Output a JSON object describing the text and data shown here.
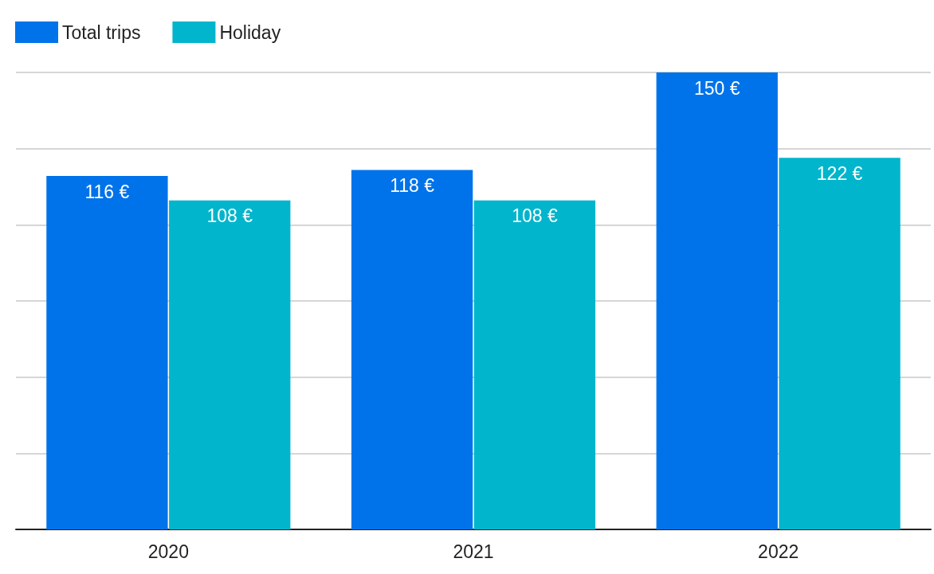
{
  "chart_data": {
    "type": "bar",
    "categories": [
      "2020",
      "2021",
      "2022"
    ],
    "series": [
      {
        "name": "Total trips",
        "color": "#0073ea",
        "values": [
          116,
          118,
          150
        ],
        "value_labels": [
          "116 €",
          "118 €",
          "150 €"
        ]
      },
      {
        "name": "Holiday",
        "color": "#00b5cc",
        "values": [
          108,
          108,
          122
        ],
        "value_labels": [
          "108 €",
          "108 €",
          "122 €"
        ]
      }
    ],
    "ylim": [
      0,
      150
    ],
    "yticks": [
      {
        "value": 0,
        "label": null
      },
      {
        "value": 25,
        "label": null
      },
      {
        "value": 50,
        "label": null
      },
      {
        "value": 75,
        "label": null
      },
      {
        "value": 100,
        "label": null
      },
      {
        "value": 125,
        "label": null
      },
      {
        "value": 150,
        "label": null
      }
    ],
    "grid": "y",
    "legend": "top left",
    "tick_labels": "x"
  }
}
